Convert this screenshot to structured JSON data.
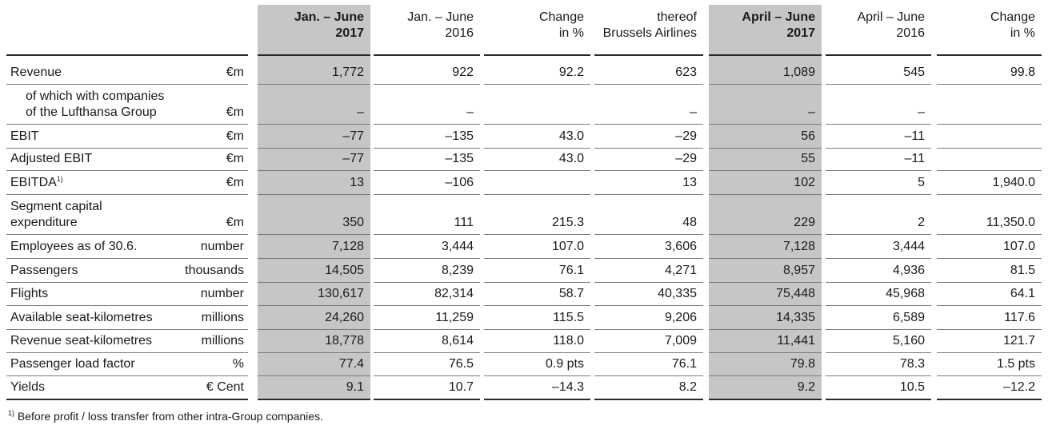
{
  "table": {
    "columns": [
      {
        "line1": "Jan. – June",
        "line2": "2017",
        "bold": true
      },
      {
        "line1": "Jan. – June",
        "line2": "2016",
        "bold": false
      },
      {
        "line1": "Change",
        "line2": "in %",
        "bold": false
      },
      {
        "line1": "thereof",
        "line2": "Brussels Airlines",
        "bold": false
      },
      {
        "line1": "April – June",
        "line2": "2017",
        "bold": true
      },
      {
        "line1": "April – June",
        "line2": "2016",
        "bold": false
      },
      {
        "line1": "Change",
        "line2": "in %",
        "bold": false
      }
    ],
    "rows": [
      {
        "label": [
          "Revenue"
        ],
        "unit": "€m",
        "values": [
          "1,772",
          "922",
          "92.2",
          "623",
          "1,089",
          "545",
          "99.8"
        ]
      },
      {
        "label": [
          "of which with companies",
          "of the Lufthansa Group"
        ],
        "indent": true,
        "unit": "€m",
        "values": [
          "–",
          "–",
          "",
          "–",
          "–",
          "–",
          ""
        ]
      },
      {
        "label": [
          "EBIT"
        ],
        "unit": "€m",
        "values": [
          "–77",
          "–135",
          "43.0",
          "–29",
          "56",
          "–11",
          ""
        ]
      },
      {
        "label": [
          "Adjusted EBIT"
        ],
        "unit": "€m",
        "values": [
          "–77",
          "–135",
          "43.0",
          "–29",
          "55",
          "–11",
          ""
        ]
      },
      {
        "label": [
          "EBITDA"
        ],
        "sup": "1)",
        "unit": "€m",
        "values": [
          "13",
          "–106",
          "",
          "13",
          "102",
          "5",
          "1,940.0"
        ]
      },
      {
        "label": [
          "Segment capital",
          "expenditure"
        ],
        "unit": "€m",
        "values": [
          "350",
          "111",
          "215.3",
          "48",
          "229",
          "2",
          "11,350.0"
        ]
      },
      {
        "label": [
          "Employees as of 30.6."
        ],
        "unit": "number",
        "values": [
          "7,128",
          "3,444",
          "107.0",
          "3,606",
          "7,128",
          "3,444",
          "107.0"
        ]
      },
      {
        "label": [
          "Passengers"
        ],
        "unit": "thousands",
        "values": [
          "14,505",
          "8,239",
          "76.1",
          "4,271",
          "8,957",
          "4,936",
          "81.5"
        ]
      },
      {
        "label": [
          "Flights"
        ],
        "unit": "number",
        "values": [
          "130,617",
          "82,314",
          "58.7",
          "40,335",
          "75,448",
          "45,968",
          "64.1"
        ]
      },
      {
        "label": [
          "Available seat-kilometres"
        ],
        "unit": "millions",
        "values": [
          "24,260",
          "11,259",
          "115.5",
          "9,206",
          "14,335",
          "6,589",
          "117.6"
        ]
      },
      {
        "label": [
          "Revenue seat-kilometres"
        ],
        "unit": "millions",
        "values": [
          "18,778",
          "8,614",
          "118.0",
          "7,009",
          "11,441",
          "5,160",
          "121.7"
        ]
      },
      {
        "label": [
          "Passenger load factor"
        ],
        "unit": "%",
        "values": [
          "77.4",
          "76.5",
          "0.9 pts",
          "76.1",
          "79.8",
          "78.3",
          "1.5 pts"
        ]
      },
      {
        "label": [
          "Yields"
        ],
        "unit": "€ Cent",
        "values": [
          "9.1",
          "10.7",
          "–14.3",
          "8.2",
          "9.2",
          "10.5",
          "–12.2"
        ]
      }
    ]
  },
  "footnote": {
    "marker": "1)",
    "text": "Before profit / loss transfer from other intra-Group companies."
  },
  "colors": {
    "highlight_column": "#c6c6c6",
    "rule": "#2a2a2a"
  }
}
